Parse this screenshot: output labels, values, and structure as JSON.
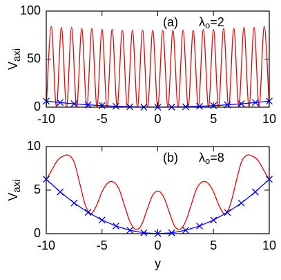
{
  "chart_data": [
    {
      "type": "line",
      "annotation": "(a)",
      "param": [
        "λ",
        "o",
        "=2"
      ],
      "ylabel": [
        "V",
        "axi"
      ],
      "xlim": [
        -10,
        10
      ],
      "xticks": [
        -10,
        -5,
        0,
        5,
        10
      ],
      "ylim": [
        0,
        100
      ],
      "yticks": [
        0,
        50,
        100
      ],
      "series": [
        {
          "color": "#ee0000",
          "smooth": true,
          "x": [
            -10,
            -9.55,
            -9.09,
            -8.64,
            -8.18,
            -7.73,
            -7.27,
            -6.82,
            -6.36,
            -5.91,
            -5.45,
            -5,
            -4.55,
            -4.09,
            -3.64,
            -3.18,
            -2.73,
            -2.27,
            -1.82,
            -1.36,
            -0.91,
            -0.45,
            0,
            0.45,
            0.91,
            1.36,
            1.82,
            2.27,
            2.73,
            3.18,
            3.64,
            4.09,
            4.55,
            5,
            5.45,
            5.91,
            6.36,
            6.82,
            7.27,
            7.73,
            8.18,
            8.64,
            9.09,
            9.55,
            10
          ],
          "values": [
            0,
            84,
            0,
            83,
            0,
            83,
            0,
            82,
            0,
            82,
            0,
            81,
            0,
            81,
            0,
            80,
            0,
            80,
            0,
            80,
            0,
            80,
            0,
            80,
            0,
            80,
            0,
            80,
            0,
            80,
            0,
            81,
            0,
            81,
            0,
            82,
            0,
            82,
            0,
            83,
            0,
            83,
            0,
            84,
            0
          ]
        },
        {
          "color": "#0000ee",
          "marker": "x",
          "x": [
            -10,
            -8.75,
            -7.5,
            -6.25,
            -5,
            -3.75,
            -2.5,
            -1.25,
            0,
            1.25,
            2.5,
            3.75,
            5,
            6.25,
            7.5,
            8.75,
            10
          ],
          "values": [
            6.25,
            4.79,
            3.52,
            2.44,
            1.56,
            0.88,
            0.39,
            0.1,
            0,
            0.1,
            0.39,
            0.88,
            1.56,
            2.44,
            3.52,
            4.79,
            6.25
          ]
        }
      ]
    },
    {
      "type": "line",
      "annotation": "(b)",
      "param": [
        "λ",
        "o",
        "=8"
      ],
      "ylabel": [
        "V",
        "axi"
      ],
      "xlabel": "y",
      "xlim": [
        -10,
        10
      ],
      "xticks": [
        -10,
        -5,
        0,
        5,
        10
      ],
      "ylim": [
        0,
        10
      ],
      "yticks": [
        0,
        5,
        10
      ],
      "series": [
        {
          "color": "#ee0000",
          "smooth": true,
          "x": [
            -10,
            -9.5,
            -9,
            -8.5,
            -8,
            -7.5,
            -7,
            -6.5,
            -6,
            -5.5,
            -5,
            -4.5,
            -4,
            -3.5,
            -3,
            -2.5,
            -2,
            -1.5,
            -1,
            -0.5,
            0,
            0.5,
            1,
            1.5,
            2,
            2.5,
            3,
            3.5,
            4,
            4.5,
            5,
            5.5,
            6,
            6.5,
            7,
            7.5,
            8,
            8.5,
            9,
            9.5,
            10
          ],
          "values": [
            6.2,
            7.3,
            8.4,
            8.9,
            9.0,
            8.2,
            5.8,
            3.3,
            2.3,
            3.2,
            4.8,
            5.8,
            5.95,
            5.2,
            3.3,
            1.4,
            0.5,
            0.9,
            2.6,
            4.3,
            4.9,
            4.3,
            2.6,
            0.9,
            0.5,
            1.4,
            3.3,
            5.2,
            5.95,
            5.8,
            4.8,
            3.2,
            2.3,
            3.3,
            5.8,
            8.2,
            9.0,
            8.9,
            8.4,
            7.3,
            6.2
          ]
        },
        {
          "color": "#0000ee",
          "marker": "x",
          "x": [
            -10,
            -8.75,
            -7.5,
            -6.25,
            -5,
            -3.75,
            -2.5,
            -1.25,
            0,
            1.25,
            2.5,
            3.75,
            5,
            6.25,
            7.5,
            8.75,
            10
          ],
          "values": [
            6.25,
            4.79,
            3.52,
            2.44,
            1.56,
            0.88,
            0.39,
            0.1,
            0,
            0.1,
            0.39,
            0.88,
            1.56,
            2.44,
            3.52,
            4.79,
            6.25
          ]
        }
      ]
    }
  ]
}
